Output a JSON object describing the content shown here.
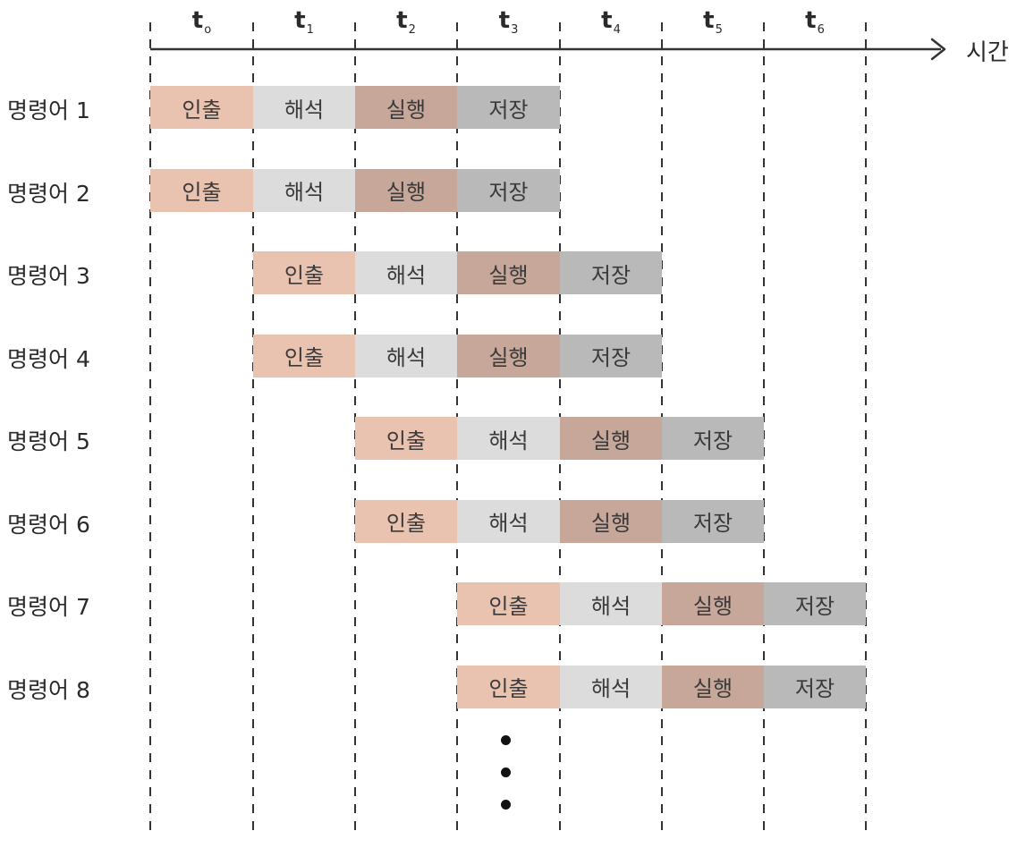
{
  "time_axis": {
    "ticks": [
      {
        "t": "t",
        "sub": "o"
      },
      {
        "t": "t",
        "sub": "1"
      },
      {
        "t": "t",
        "sub": "2"
      },
      {
        "t": "t",
        "sub": "3"
      },
      {
        "t": "t",
        "sub": "4"
      },
      {
        "t": "t",
        "sub": "5"
      },
      {
        "t": "t",
        "sub": "6"
      }
    ],
    "label": "시간"
  },
  "stages": [
    "인출",
    "해석",
    "실행",
    "저장"
  ],
  "instructions": [
    {
      "label": "명령어 1",
      "start": 0
    },
    {
      "label": "명령어 2",
      "start": 0
    },
    {
      "label": "명령어 3",
      "start": 1
    },
    {
      "label": "명령어 4",
      "start": 1
    },
    {
      "label": "명령어 5",
      "start": 2
    },
    {
      "label": "명령어 6",
      "start": 2
    },
    {
      "label": "명령어 7",
      "start": 3
    },
    {
      "label": "명령어 8",
      "start": 3
    }
  ],
  "colors": {
    "fetch": "#e9c2b0",
    "decode": "#dcdcdc",
    "execute": "#c7a79a",
    "store": "#b9b9b9",
    "line": "#333333"
  },
  "continuation_dots": 3
}
